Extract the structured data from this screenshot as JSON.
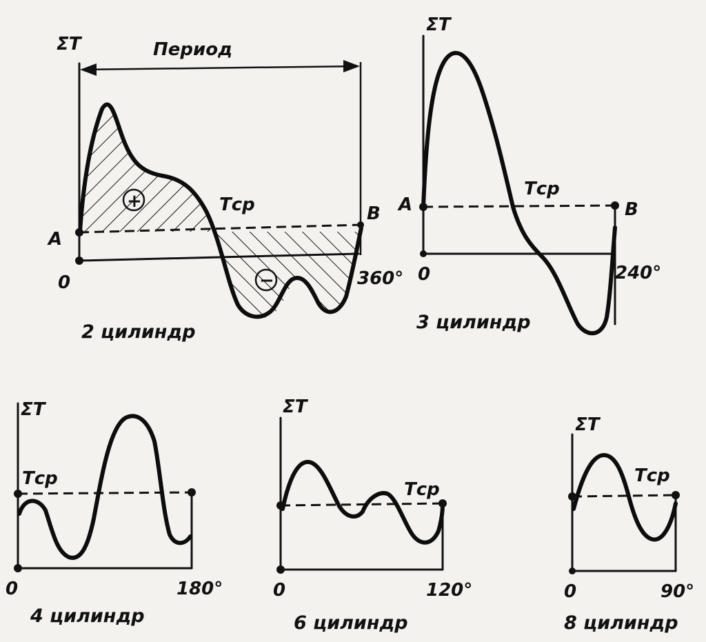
{
  "diagram": {
    "period_label": "Период",
    "sum_label": "ΣT",
    "mean_label": "Tср",
    "plus_sign": "+",
    "minus_sign": "−",
    "panels": [
      {
        "caption": "2 цилиндр",
        "origin_label": "0",
        "end_label": "360°",
        "point_a": "A",
        "point_b": "B"
      },
      {
        "caption": "3 цилиндр",
        "origin_label": "0",
        "end_label": "240°",
        "point_a": "A",
        "point_b": "B"
      },
      {
        "caption": "4 цилиндр",
        "origin_label": "0",
        "end_label": "180°"
      },
      {
        "caption": "6 цилиндр",
        "origin_label": "0",
        "end_label": "120°"
      },
      {
        "caption": "8 цилиндр",
        "origin_label": "0",
        "end_label": "90°"
      }
    ]
  }
}
